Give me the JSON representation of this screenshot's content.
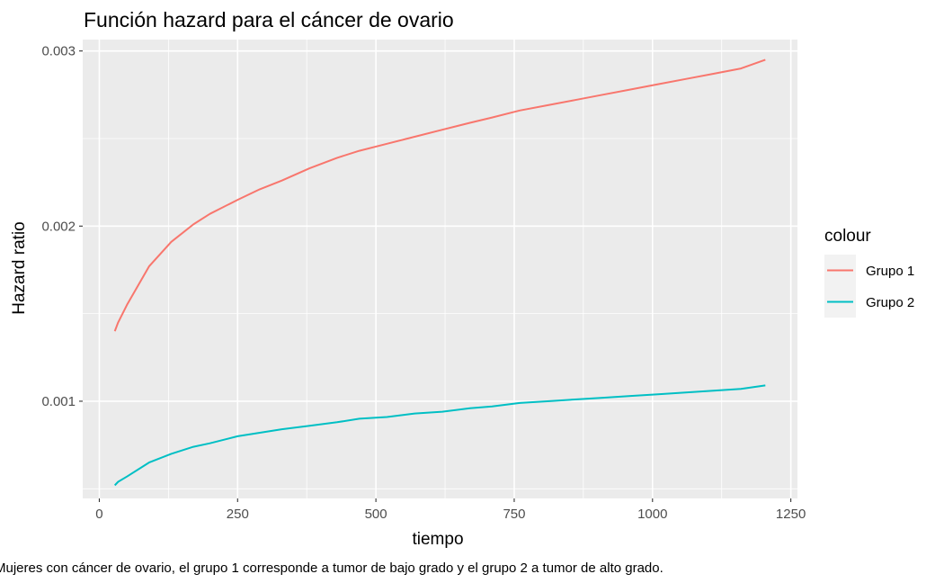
{
  "chart_data": {
    "type": "line",
    "title": "Función hazard para el cáncer de ovario",
    "xlabel": "tiempo",
    "ylabel": "Hazard ratio",
    "caption": "Mujeres con cáncer de ovario, el grupo 1 corresponde a tumor de bajo grado y el grupo 2 a tumor de alto grado.",
    "xlim": [
      -30,
      1262
    ],
    "ylim": [
      0.000445,
      0.003065
    ],
    "xticks": [
      0,
      250,
      500,
      750,
      1000,
      1250
    ],
    "xtick_labels": [
      "0",
      "250",
      "500",
      "750",
      "1000",
      "1250"
    ],
    "yticks": [
      0.001,
      0.002,
      0.003
    ],
    "ytick_labels": [
      "0.001",
      "0.002",
      "0.003"
    ],
    "grid": true,
    "background": "#EBEBEB",
    "legend": {
      "title": "colour",
      "position": "right"
    },
    "series": [
      {
        "name": "Grupo 1",
        "color": "#F8766D",
        "x": [
          28,
          34,
          50,
          90,
          130,
          170,
          200,
          250,
          290,
          330,
          380,
          430,
          470,
          520,
          570,
          620,
          670,
          710,
          760,
          810,
          860,
          910,
          960,
          1010,
          1060,
          1110,
          1160,
          1204
        ],
        "y": [
          0.0014,
          0.00145,
          0.00155,
          0.00177,
          0.00191,
          0.00201,
          0.00207,
          0.00215,
          0.00221,
          0.00226,
          0.00233,
          0.00239,
          0.00243,
          0.00247,
          0.00251,
          0.00255,
          0.00259,
          0.00262,
          0.00266,
          0.00269,
          0.00272,
          0.00275,
          0.00278,
          0.00281,
          0.00284,
          0.00287,
          0.0029,
          0.00295
        ]
      },
      {
        "name": "Grupo 2",
        "color": "#00BFC4",
        "x": [
          28,
          34,
          50,
          90,
          130,
          170,
          200,
          250,
          290,
          330,
          380,
          430,
          470,
          520,
          570,
          620,
          670,
          710,
          760,
          810,
          860,
          910,
          960,
          1010,
          1060,
          1110,
          1160,
          1204
        ],
        "y": [
          0.00052,
          0.00054,
          0.00057,
          0.00065,
          0.0007,
          0.00074,
          0.00076,
          0.0008,
          0.00082,
          0.00084,
          0.00086,
          0.00088,
          0.0009,
          0.00091,
          0.00093,
          0.00094,
          0.00096,
          0.00097,
          0.00099,
          0.001,
          0.00101,
          0.00102,
          0.00103,
          0.00104,
          0.00105,
          0.00106,
          0.00107,
          0.00109
        ]
      }
    ]
  }
}
